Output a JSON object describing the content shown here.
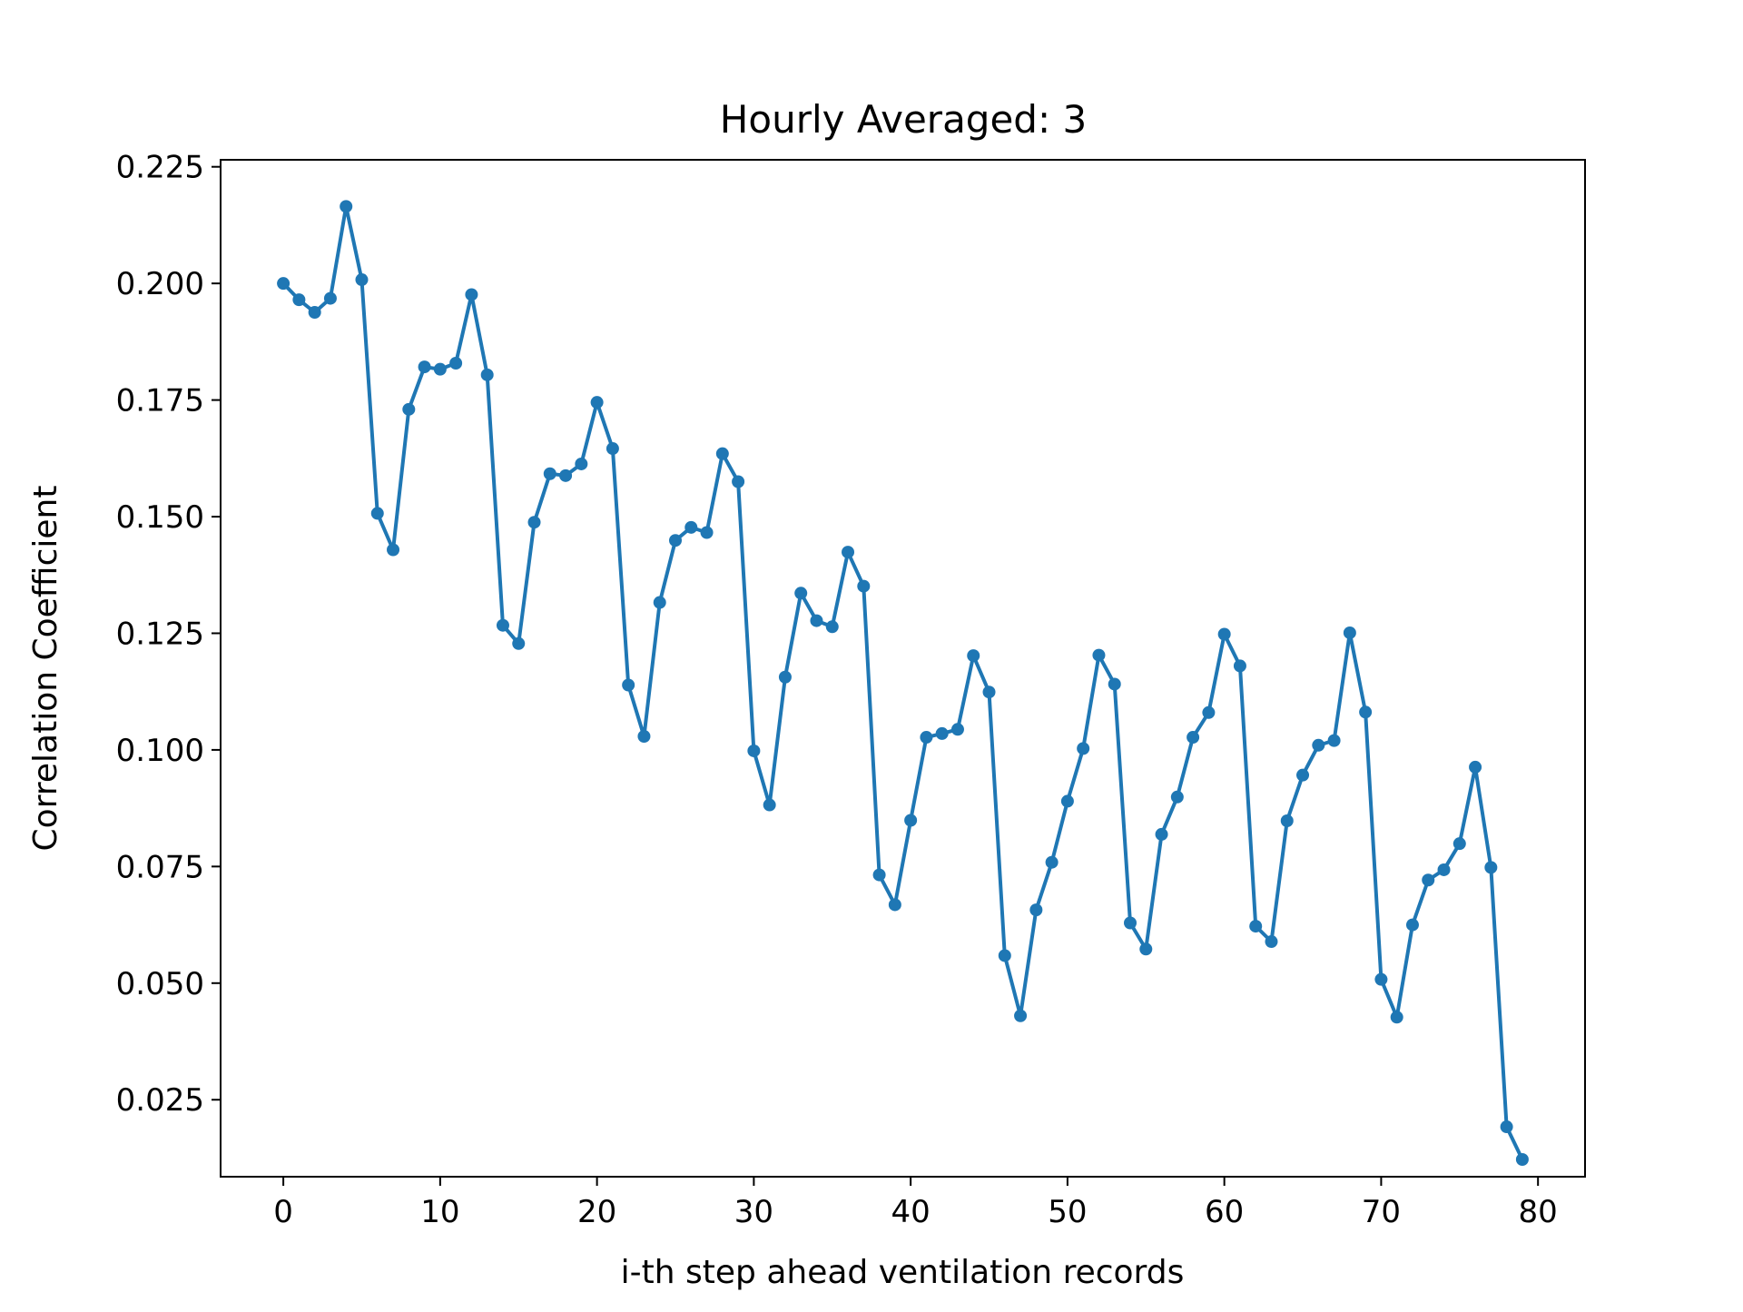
{
  "chart_data": {
    "type": "line",
    "title": "Hourly Averaged: 3",
    "xlabel": "i-th step ahead ventilation records",
    "ylabel": "Correlation Coefficient",
    "xlim": [
      -4,
      83
    ],
    "ylim": [
      0.0085,
      0.2265
    ],
    "x_ticks": [
      0,
      10,
      20,
      30,
      40,
      50,
      60,
      70,
      80
    ],
    "y_ticks": [
      0.025,
      0.05,
      0.075,
      0.1,
      0.125,
      0.15,
      0.175,
      0.2,
      0.225
    ],
    "x_tick_labels": [
      "0",
      "10",
      "20",
      "30",
      "40",
      "50",
      "60",
      "70",
      "80"
    ],
    "y_tick_labels": [
      "0.025",
      "0.050",
      "0.075",
      "0.100",
      "0.125",
      "0.150",
      "0.175",
      "0.200",
      "0.225"
    ],
    "grid": false,
    "legend": "none",
    "line_color": "#1f77b4",
    "marker": "circle",
    "series": [
      {
        "x": [
          0,
          1,
          2,
          3,
          4,
          5,
          6,
          7,
          8,
          9,
          10,
          11,
          12,
          13,
          14,
          15,
          16,
          17,
          18,
          19,
          20,
          21,
          22,
          23,
          24,
          25,
          26,
          27,
          28,
          29,
          30,
          31,
          32,
          33,
          34,
          35,
          36,
          37,
          38,
          39,
          40,
          41,
          42,
          43,
          44,
          45,
          46,
          47,
          48,
          49,
          50,
          51,
          52,
          53,
          54,
          55,
          56,
          57,
          58,
          59,
          60,
          61,
          62,
          63,
          64,
          65,
          66,
          67,
          68,
          69,
          70,
          71,
          72,
          73,
          74,
          75,
          76,
          77,
          78,
          79
        ],
        "y": [
          0.2,
          0.1965,
          0.1938,
          0.1968,
          0.2165,
          0.2008,
          0.1507,
          0.1429,
          0.173,
          0.1821,
          0.1816,
          0.1829,
          0.1976,
          0.1804,
          0.1267,
          0.1228,
          0.1488,
          0.1592,
          0.1588,
          0.1613,
          0.1745,
          0.1646,
          0.1139,
          0.1029,
          0.1316,
          0.1449,
          0.1477,
          0.1466,
          0.1635,
          0.1575,
          0.0998,
          0.0882,
          0.1156,
          0.1336,
          0.1277,
          0.1264,
          0.1424,
          0.1351,
          0.0732,
          0.0668,
          0.0849,
          0.1027,
          0.1035,
          0.1044,
          0.1202,
          0.1124,
          0.0559,
          0.043,
          0.0657,
          0.0759,
          0.089,
          0.1003,
          0.1203,
          0.1141,
          0.0629,
          0.0573,
          0.0819,
          0.0899,
          0.1027,
          0.108,
          0.1248,
          0.118,
          0.0622,
          0.0589,
          0.0848,
          0.0946,
          0.101,
          0.102,
          0.1251,
          0.1081,
          0.0508,
          0.0427,
          0.0625,
          0.0721,
          0.0743,
          0.0799,
          0.0963,
          0.0748,
          0.0192,
          0.0122
        ]
      }
    ]
  }
}
